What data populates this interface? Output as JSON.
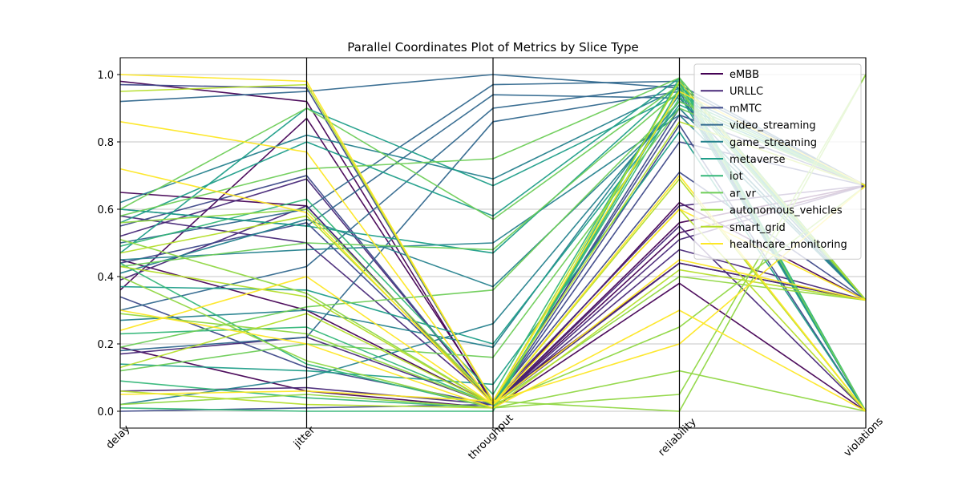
{
  "chart_data": {
    "type": "parallel-coordinates",
    "title": "Parallel Coordinates Plot of Metrics by Slice Type",
    "axes": [
      "delay",
      "jitter",
      "throughput",
      "reliability",
      "violations"
    ],
    "yticks": [
      "0.0",
      "0.2",
      "0.4",
      "0.6",
      "0.8",
      "1.0"
    ],
    "ylim": [
      -0.05,
      1.05
    ],
    "grid": true,
    "legend_position": "top-right",
    "series": [
      {
        "name": "eMBB",
        "color": "#440154",
        "lines": [
          [
            0.65,
            0.61,
            0.02,
            0.53,
            0.67
          ],
          [
            0.19,
            0.06,
            0.01,
            0.38,
            0.0
          ],
          [
            0.36,
            0.87,
            0.03,
            0.44,
            0.33
          ],
          [
            0.98,
            0.92,
            0.02,
            0.56,
            0.67
          ],
          [
            0.45,
            0.3,
            0.02,
            0.62,
            0.33
          ]
        ]
      },
      {
        "name": "URLLC",
        "color": "#482878",
        "lines": [
          [
            0.52,
            0.69,
            0.02,
            0.51,
            0.67
          ],
          [
            0.17,
            0.22,
            0.02,
            0.44,
            0.33
          ],
          [
            0.58,
            0.5,
            0.03,
            0.61,
            0.67
          ],
          [
            0.06,
            0.07,
            0.02,
            0.55,
            0.0
          ],
          [
            0.39,
            0.61,
            0.02,
            0.48,
            0.33
          ]
        ]
      },
      {
        "name": "mMTC",
        "color": "#3e4989",
        "lines": [
          [
            0.0,
            0.01,
            0.02,
            0.9,
            0.33
          ],
          [
            0.34,
            0.13,
            0.02,
            0.8,
            0.67
          ],
          [
            0.44,
            0.56,
            0.03,
            0.71,
            0.33
          ],
          [
            0.55,
            0.7,
            0.02,
            0.85,
            0.0
          ],
          [
            0.97,
            0.96,
            0.03,
            0.88,
            0.67
          ]
        ]
      },
      {
        "name": "video_streaming",
        "color": "#31688e",
        "lines": [
          [
            0.92,
            0.95,
            1.0,
            0.96,
            0.67
          ],
          [
            0.6,
            0.55,
            0.94,
            0.93,
            0.33
          ],
          [
            0.3,
            0.43,
            0.9,
            0.97,
            0.67
          ],
          [
            0.18,
            0.22,
            0.86,
            0.95,
            0.0
          ],
          [
            0.5,
            0.6,
            0.97,
            0.98,
            0.33
          ]
        ]
      },
      {
        "name": "game_streaming",
        "color": "#26828e",
        "lines": [
          [
            0.41,
            0.57,
            0.37,
            0.9,
            0.33
          ],
          [
            0.02,
            0.1,
            0.26,
            0.92,
            0.67
          ],
          [
            0.62,
            0.82,
            0.69,
            0.96,
            0.0
          ],
          [
            0.45,
            0.48,
            0.5,
            0.88,
            0.33
          ],
          [
            0.27,
            0.3,
            0.19,
            0.94,
            0.67
          ]
        ]
      },
      {
        "name": "metaverse",
        "color": "#1f9e89",
        "lines": [
          [
            0.56,
            0.8,
            0.58,
            0.99,
            0.33
          ],
          [
            0.14,
            0.12,
            0.08,
            0.83,
            0.0
          ],
          [
            0.37,
            0.36,
            0.2,
            0.91,
            0.67
          ],
          [
            0.6,
            0.55,
            0.47,
            0.97,
            0.33
          ],
          [
            0.47,
            0.9,
            0.67,
            0.94,
            0.0
          ]
        ]
      },
      {
        "name": "iot",
        "color": "#35b779",
        "lines": [
          [
            0.01,
            0.0,
            0.0,
            0.99,
            0.0
          ],
          [
            0.44,
            0.14,
            0.01,
            0.96,
            0.33
          ],
          [
            0.23,
            0.25,
            0.02,
            0.93,
            0.67
          ],
          [
            0.49,
            0.63,
            0.05,
            0.98,
            0.0
          ],
          [
            0.09,
            0.04,
            0.01,
            0.95,
            0.33
          ]
        ]
      },
      {
        "name": "ar_vr",
        "color": "#6ece58",
        "lines": [
          [
            0.58,
            0.72,
            0.75,
            0.99,
            0.33
          ],
          [
            0.19,
            0.31,
            0.36,
            0.92,
            0.67
          ],
          [
            0.6,
            0.9,
            0.57,
            0.97,
            0.0
          ],
          [
            0.43,
            0.5,
            0.48,
            0.95,
            0.33
          ],
          [
            0.12,
            0.2,
            0.16,
            0.9,
            0.67
          ]
        ]
      },
      {
        "name": "autonomous_vehicles",
        "color": "#90d743",
        "lines": [
          [
            0.02,
            0.05,
            0.01,
            0.05,
            1.0
          ],
          [
            0.51,
            0.35,
            0.02,
            0.25,
            0.67
          ],
          [
            0.4,
            0.15,
            0.01,
            0.12,
            0.0
          ],
          [
            0.29,
            0.23,
            0.02,
            0.4,
            0.33
          ],
          [
            0.56,
            0.6,
            0.03,
            0.0,
            1.0
          ]
        ]
      },
      {
        "name": "smart_grid",
        "color": "#b5de2b",
        "lines": [
          [
            0.43,
            0.34,
            0.02,
            0.69,
            0.0
          ],
          [
            0.06,
            0.02,
            0.01,
            0.42,
            0.33
          ],
          [
            0.47,
            0.58,
            0.03,
            0.86,
            0.67
          ],
          [
            0.13,
            0.29,
            0.02,
            0.6,
            0.0
          ],
          [
            0.95,
            0.97,
            0.03,
            0.98,
            0.33
          ]
        ]
      },
      {
        "name": "healthcare_monitoring",
        "color": "#fde725",
        "lines": [
          [
            1.0,
            0.98,
            0.03,
            0.95,
            0.67
          ],
          [
            0.72,
            0.59,
            0.02,
            0.45,
            0.33
          ],
          [
            0.3,
            0.2,
            0.01,
            0.3,
            0.0
          ],
          [
            0.05,
            0.06,
            0.03,
            0.2,
            0.67
          ],
          [
            0.86,
            0.77,
            0.02,
            0.6,
            0.33
          ],
          [
            0.24,
            0.4,
            0.02,
            0.7,
            0.0
          ]
        ]
      }
    ]
  }
}
